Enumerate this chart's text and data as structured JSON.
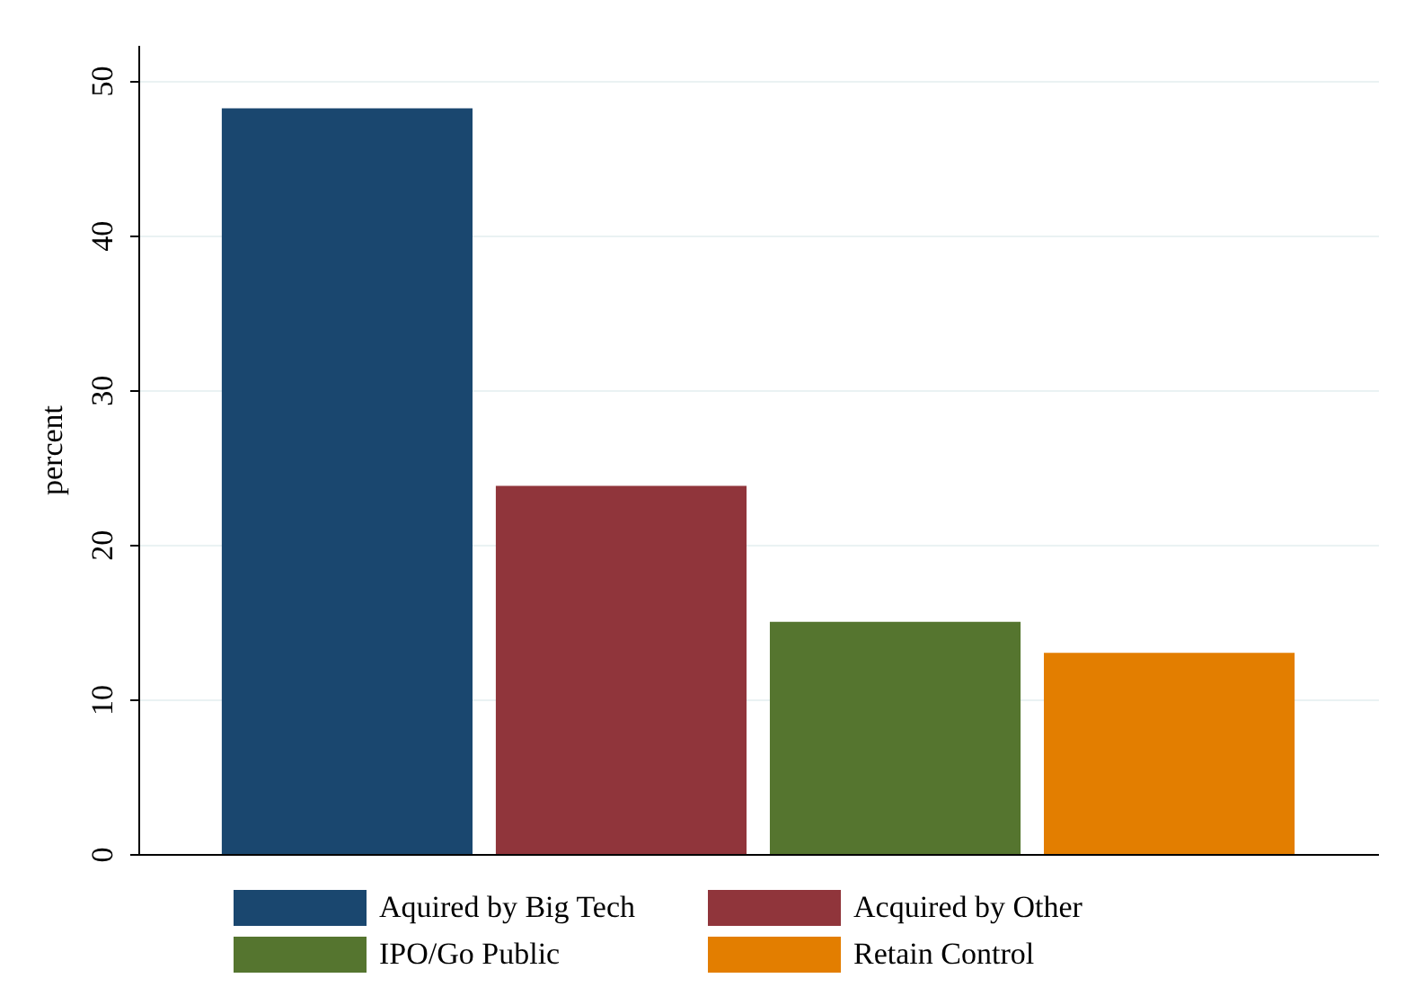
{
  "chart_data": {
    "type": "bar",
    "ylabel": "percent",
    "categories": [
      null
    ],
    "series": [
      {
        "name": "Aquired by Big Tech",
        "color": "#1a476f",
        "values": [
          48.2
        ]
      },
      {
        "name": "Acquired by Other",
        "color": "#90353b",
        "values": [
          23.8
        ]
      },
      {
        "name": "IPO/Go Public",
        "color": "#55752f",
        "values": [
          15.0
        ]
      },
      {
        "name": "Retain Control",
        "color": "#e37e00",
        "values": [
          13.0
        ]
      }
    ],
    "ylim": [
      0,
      52.3
    ],
    "yticks": [
      0,
      10,
      20,
      30,
      40,
      50
    ],
    "grid": "y",
    "legend": "bottom"
  }
}
